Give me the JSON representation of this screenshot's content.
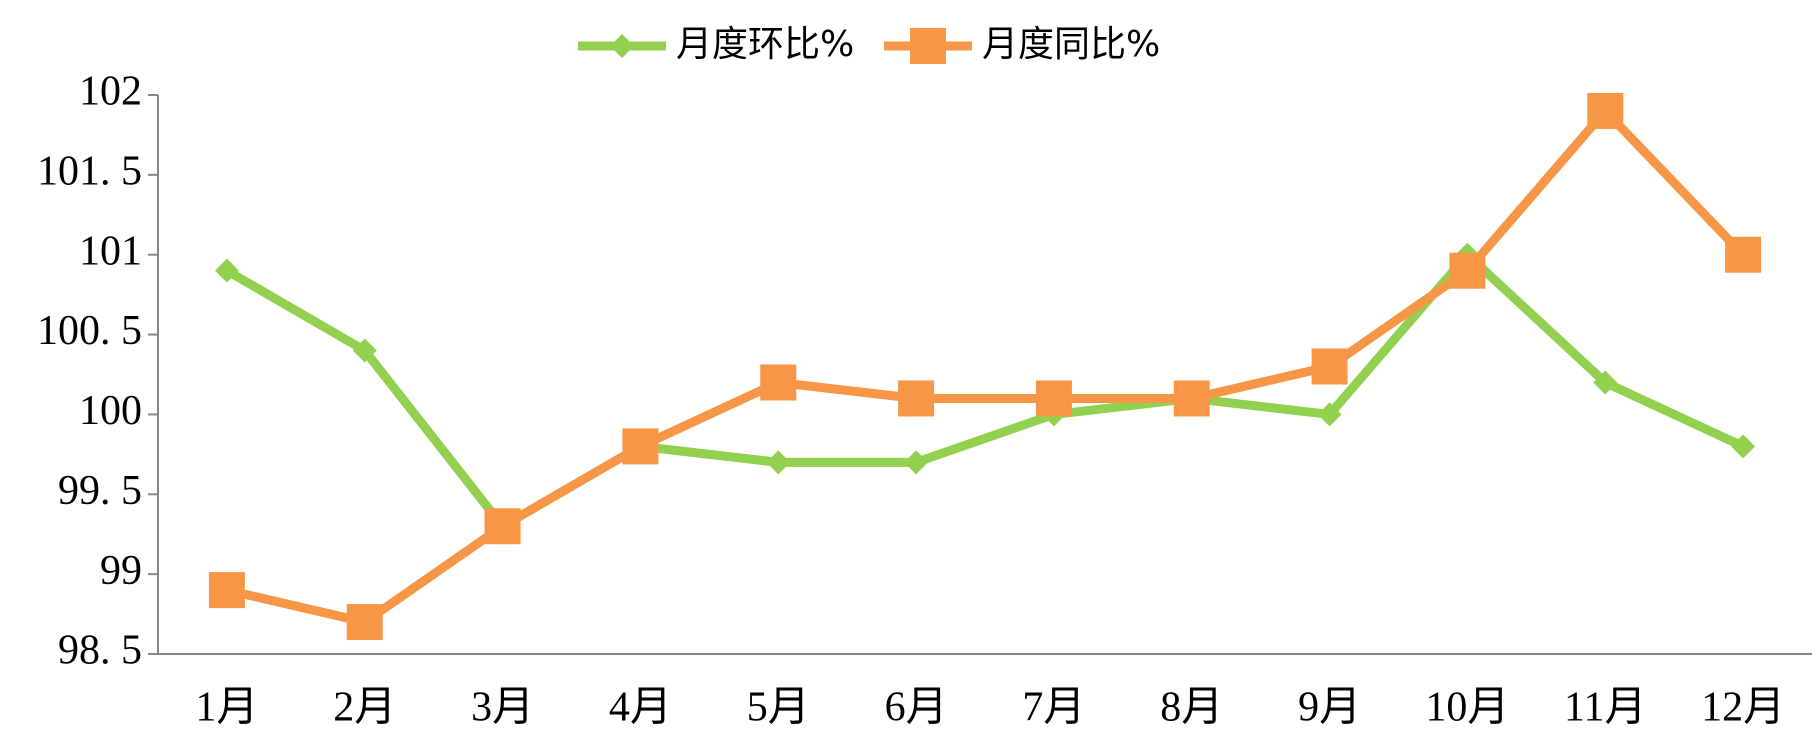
{
  "chart_data": {
    "type": "line",
    "categories": [
      "1月",
      "2月",
      "3月",
      "4月",
      "5月",
      "6月",
      "7月",
      "8月",
      "9月",
      "10月",
      "11月",
      "12月"
    ],
    "series": [
      {
        "name": "月度环比%",
        "color": "#92d050",
        "marker": "diamond",
        "values": [
          100.9,
          100.4,
          99.3,
          99.8,
          99.7,
          99.7,
          100.0,
          100.1,
          100.0,
          101.0,
          100.2,
          99.8
        ]
      },
      {
        "name": "月度同比%",
        "color": "#f79646",
        "marker": "square",
        "values": [
          98.9,
          98.7,
          99.3,
          99.8,
          100.2,
          100.1,
          100.1,
          100.1,
          100.3,
          100.9,
          101.9,
          101.0
        ]
      }
    ],
    "ylim": [
      98.5,
      102
    ],
    "yticks": [
      {
        "value": 98.5,
        "label": "98. 5"
      },
      99,
      {
        "value": 99.5,
        "label": "99. 5"
      },
      100,
      {
        "value": 100.5,
        "label": "100. 5"
      },
      101,
      {
        "value": 101.5,
        "label": "101. 5"
      },
      102
    ],
    "grid": false,
    "legend": "top"
  }
}
